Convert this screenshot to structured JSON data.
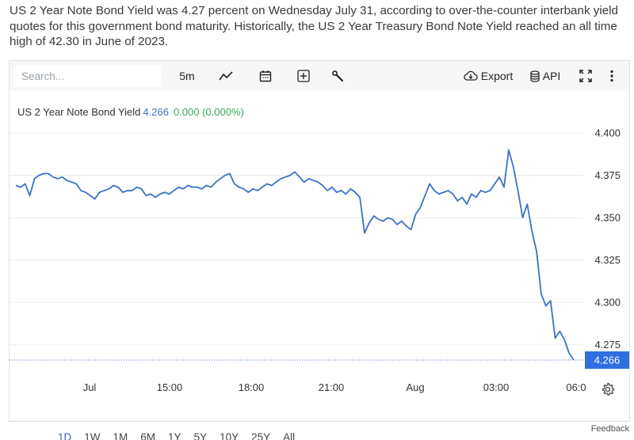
{
  "intro_text": "US 2 Year Note Bond Yield was 4.27 percent on Wednesday July 31, according to over-the-counter interbank yield quotes for this government bond maturity. Historically, the US 2 Year Treasury Bond Note Yield reached an all time high of 42.30 in June of 2023.",
  "toolbar": {
    "search_placeholder": "Search...",
    "interval_label": "5m",
    "export_label": "Export",
    "api_label": "API",
    "icons": [
      "line-chart-icon",
      "calendar-icon",
      "add-icon",
      "wrench-icon",
      "cloud-download-icon",
      "database-icon",
      "fullscreen-icon",
      "more-vertical-icon"
    ]
  },
  "legend": {
    "name": "US 2 Year Note Bond Yield",
    "value": "4.266",
    "change": "0.000 (0.000%)"
  },
  "colors": {
    "line": "#3a72c8",
    "last_price_badge": "#2f6fe0",
    "change_positive": "#3aaa5a",
    "active_period": "#2f62c9"
  },
  "periods": [
    "1D",
    "1W",
    "1M",
    "6M",
    "1Y",
    "5Y",
    "10Y",
    "25Y",
    "All"
  ],
  "active_period": "1D",
  "feedback_label": "Feedback",
  "chart_data": {
    "type": "line",
    "title": "",
    "xlabel": "",
    "ylabel": "",
    "x_tick_labels": [
      "Jul",
      "15:00",
      "18:00",
      "21:00",
      "Aug",
      "03:00",
      "06:0"
    ],
    "y_tick_labels": [
      "4.400",
      "4.375",
      "4.350",
      "4.325",
      "4.300",
      "4.275"
    ],
    "ylim": [
      4.259,
      4.407
    ],
    "last_value_label": "4.266",
    "last_value": 4.266,
    "grid": "horizontal",
    "series": [
      {
        "name": "US 2 Year Note Bond Yield",
        "x_index_range": [
          0,
          120
        ],
        "values": [
          4.369,
          4.368,
          4.37,
          4.363,
          4.373,
          4.375,
          4.376,
          4.376,
          4.374,
          4.373,
          4.374,
          4.372,
          4.371,
          4.37,
          4.366,
          4.365,
          4.363,
          4.361,
          4.365,
          4.366,
          4.367,
          4.369,
          4.368,
          4.365,
          4.366,
          4.366,
          4.368,
          4.367,
          4.363,
          4.364,
          4.362,
          4.364,
          4.365,
          4.364,
          4.366,
          4.368,
          4.367,
          4.369,
          4.368,
          4.368,
          4.367,
          4.369,
          4.368,
          4.371,
          4.373,
          4.375,
          4.376,
          4.37,
          4.368,
          4.367,
          4.365,
          4.367,
          4.366,
          4.368,
          4.37,
          4.369,
          4.371,
          4.373,
          4.374,
          4.375,
          4.377,
          4.374,
          4.371,
          4.373,
          4.372,
          4.371,
          4.369,
          4.366,
          4.368,
          4.365,
          4.366,
          4.364,
          4.367,
          4.365,
          4.362,
          4.341,
          4.347,
          4.351,
          4.349,
          4.348,
          4.35,
          4.349,
          4.346,
          4.348,
          4.345,
          4.343,
          4.352,
          4.356,
          4.363,
          4.37,
          4.366,
          4.364,
          4.365,
          4.366,
          4.364,
          4.36,
          4.362,
          4.358,
          4.364,
          4.362,
          4.366,
          4.365,
          4.366,
          4.37,
          4.374,
          4.368,
          4.39,
          4.38,
          4.366,
          4.35,
          4.358,
          4.342,
          4.33,
          4.305,
          4.298,
          4.301,
          4.279,
          4.283,
          4.278,
          4.27,
          4.266
        ]
      }
    ]
  }
}
